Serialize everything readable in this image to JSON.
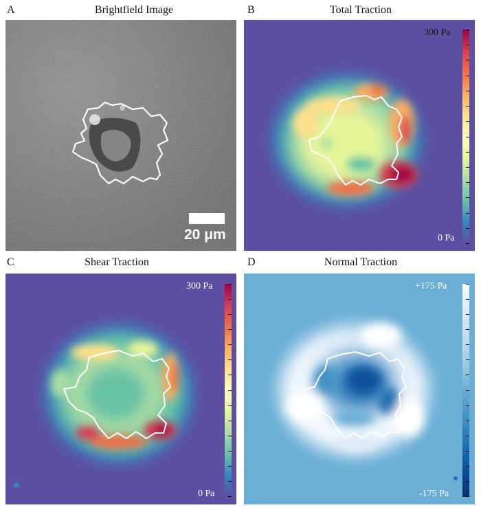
{
  "panels": [
    {
      "letter": "A",
      "title": "Brightfield Image",
      "scale_bar_label": "20 μm"
    },
    {
      "letter": "B",
      "title": "Total Traction",
      "cbar_max": "300 Pa",
      "cbar_min": "0 Pa",
      "colormap": "spectral"
    },
    {
      "letter": "C",
      "title": "Shear Traction",
      "cbar_max": "300 Pa",
      "cbar_min": "0 Pa",
      "colormap": "spectral"
    },
    {
      "letter": "D",
      "title": "Normal Traction",
      "cbar_max": "+175 Pa",
      "cbar_min": "-175 Pa",
      "colormap": "blues"
    }
  ],
  "colors": {
    "background_purple": "#5e4fa2",
    "background_blue": "#6aaed6",
    "hot": "#9e0142",
    "outline": "#ffffff"
  }
}
